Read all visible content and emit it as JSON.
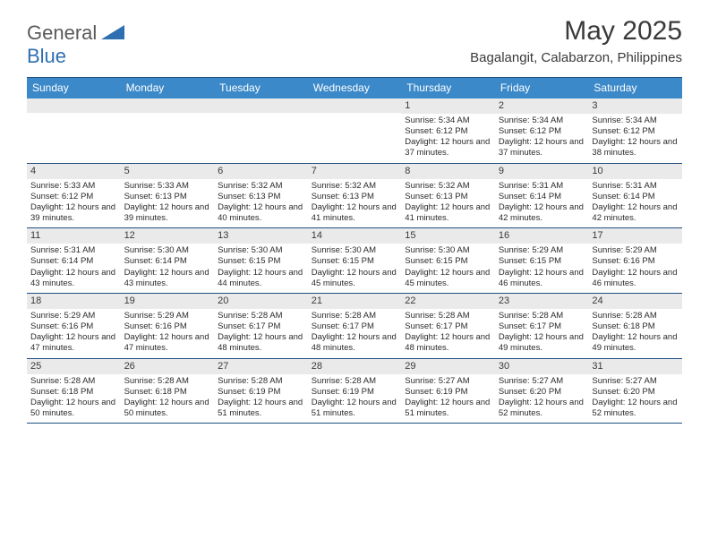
{
  "logo": {
    "general": "General",
    "blue": "Blue"
  },
  "title": {
    "month": "May 2025",
    "location": "Bagalangit, Calabarzon, Philippines"
  },
  "colors": {
    "headerBg": "#3b89c9",
    "headerText": "#ffffff",
    "borderDark": "#1f4f7f",
    "dayNumBg": "#eaeaea",
    "textDark": "#3a3a3a",
    "logoBlue": "#2e6fb1",
    "logoGrey": "#5a5a5a"
  },
  "dayNames": [
    "Sunday",
    "Monday",
    "Tuesday",
    "Wednesday",
    "Thursday",
    "Friday",
    "Saturday"
  ],
  "weeks": [
    [
      {
        "num": "",
        "sunrise": "",
        "sunset": "",
        "daylight": ""
      },
      {
        "num": "",
        "sunrise": "",
        "sunset": "",
        "daylight": ""
      },
      {
        "num": "",
        "sunrise": "",
        "sunset": "",
        "daylight": ""
      },
      {
        "num": "",
        "sunrise": "",
        "sunset": "",
        "daylight": ""
      },
      {
        "num": "1",
        "sunrise": "Sunrise: 5:34 AM",
        "sunset": "Sunset: 6:12 PM",
        "daylight": "Daylight: 12 hours and 37 minutes."
      },
      {
        "num": "2",
        "sunrise": "Sunrise: 5:34 AM",
        "sunset": "Sunset: 6:12 PM",
        "daylight": "Daylight: 12 hours and 37 minutes."
      },
      {
        "num": "3",
        "sunrise": "Sunrise: 5:34 AM",
        "sunset": "Sunset: 6:12 PM",
        "daylight": "Daylight: 12 hours and 38 minutes."
      }
    ],
    [
      {
        "num": "4",
        "sunrise": "Sunrise: 5:33 AM",
        "sunset": "Sunset: 6:12 PM",
        "daylight": "Daylight: 12 hours and 39 minutes."
      },
      {
        "num": "5",
        "sunrise": "Sunrise: 5:33 AM",
        "sunset": "Sunset: 6:13 PM",
        "daylight": "Daylight: 12 hours and 39 minutes."
      },
      {
        "num": "6",
        "sunrise": "Sunrise: 5:32 AM",
        "sunset": "Sunset: 6:13 PM",
        "daylight": "Daylight: 12 hours and 40 minutes."
      },
      {
        "num": "7",
        "sunrise": "Sunrise: 5:32 AM",
        "sunset": "Sunset: 6:13 PM",
        "daylight": "Daylight: 12 hours and 41 minutes."
      },
      {
        "num": "8",
        "sunrise": "Sunrise: 5:32 AM",
        "sunset": "Sunset: 6:13 PM",
        "daylight": "Daylight: 12 hours and 41 minutes."
      },
      {
        "num": "9",
        "sunrise": "Sunrise: 5:31 AM",
        "sunset": "Sunset: 6:14 PM",
        "daylight": "Daylight: 12 hours and 42 minutes."
      },
      {
        "num": "10",
        "sunrise": "Sunrise: 5:31 AM",
        "sunset": "Sunset: 6:14 PM",
        "daylight": "Daylight: 12 hours and 42 minutes."
      }
    ],
    [
      {
        "num": "11",
        "sunrise": "Sunrise: 5:31 AM",
        "sunset": "Sunset: 6:14 PM",
        "daylight": "Daylight: 12 hours and 43 minutes."
      },
      {
        "num": "12",
        "sunrise": "Sunrise: 5:30 AM",
        "sunset": "Sunset: 6:14 PM",
        "daylight": "Daylight: 12 hours and 43 minutes."
      },
      {
        "num": "13",
        "sunrise": "Sunrise: 5:30 AM",
        "sunset": "Sunset: 6:15 PM",
        "daylight": "Daylight: 12 hours and 44 minutes."
      },
      {
        "num": "14",
        "sunrise": "Sunrise: 5:30 AM",
        "sunset": "Sunset: 6:15 PM",
        "daylight": "Daylight: 12 hours and 45 minutes."
      },
      {
        "num": "15",
        "sunrise": "Sunrise: 5:30 AM",
        "sunset": "Sunset: 6:15 PM",
        "daylight": "Daylight: 12 hours and 45 minutes."
      },
      {
        "num": "16",
        "sunrise": "Sunrise: 5:29 AM",
        "sunset": "Sunset: 6:15 PM",
        "daylight": "Daylight: 12 hours and 46 minutes."
      },
      {
        "num": "17",
        "sunrise": "Sunrise: 5:29 AM",
        "sunset": "Sunset: 6:16 PM",
        "daylight": "Daylight: 12 hours and 46 minutes."
      }
    ],
    [
      {
        "num": "18",
        "sunrise": "Sunrise: 5:29 AM",
        "sunset": "Sunset: 6:16 PM",
        "daylight": "Daylight: 12 hours and 47 minutes."
      },
      {
        "num": "19",
        "sunrise": "Sunrise: 5:29 AM",
        "sunset": "Sunset: 6:16 PM",
        "daylight": "Daylight: 12 hours and 47 minutes."
      },
      {
        "num": "20",
        "sunrise": "Sunrise: 5:28 AM",
        "sunset": "Sunset: 6:17 PM",
        "daylight": "Daylight: 12 hours and 48 minutes."
      },
      {
        "num": "21",
        "sunrise": "Sunrise: 5:28 AM",
        "sunset": "Sunset: 6:17 PM",
        "daylight": "Daylight: 12 hours and 48 minutes."
      },
      {
        "num": "22",
        "sunrise": "Sunrise: 5:28 AM",
        "sunset": "Sunset: 6:17 PM",
        "daylight": "Daylight: 12 hours and 48 minutes."
      },
      {
        "num": "23",
        "sunrise": "Sunrise: 5:28 AM",
        "sunset": "Sunset: 6:17 PM",
        "daylight": "Daylight: 12 hours and 49 minutes."
      },
      {
        "num": "24",
        "sunrise": "Sunrise: 5:28 AM",
        "sunset": "Sunset: 6:18 PM",
        "daylight": "Daylight: 12 hours and 49 minutes."
      }
    ],
    [
      {
        "num": "25",
        "sunrise": "Sunrise: 5:28 AM",
        "sunset": "Sunset: 6:18 PM",
        "daylight": "Daylight: 12 hours and 50 minutes."
      },
      {
        "num": "26",
        "sunrise": "Sunrise: 5:28 AM",
        "sunset": "Sunset: 6:18 PM",
        "daylight": "Daylight: 12 hours and 50 minutes."
      },
      {
        "num": "27",
        "sunrise": "Sunrise: 5:28 AM",
        "sunset": "Sunset: 6:19 PM",
        "daylight": "Daylight: 12 hours and 51 minutes."
      },
      {
        "num": "28",
        "sunrise": "Sunrise: 5:28 AM",
        "sunset": "Sunset: 6:19 PM",
        "daylight": "Daylight: 12 hours and 51 minutes."
      },
      {
        "num": "29",
        "sunrise": "Sunrise: 5:27 AM",
        "sunset": "Sunset: 6:19 PM",
        "daylight": "Daylight: 12 hours and 51 minutes."
      },
      {
        "num": "30",
        "sunrise": "Sunrise: 5:27 AM",
        "sunset": "Sunset: 6:20 PM",
        "daylight": "Daylight: 12 hours and 52 minutes."
      },
      {
        "num": "31",
        "sunrise": "Sunrise: 5:27 AM",
        "sunset": "Sunset: 6:20 PM",
        "daylight": "Daylight: 12 hours and 52 minutes."
      }
    ]
  ]
}
